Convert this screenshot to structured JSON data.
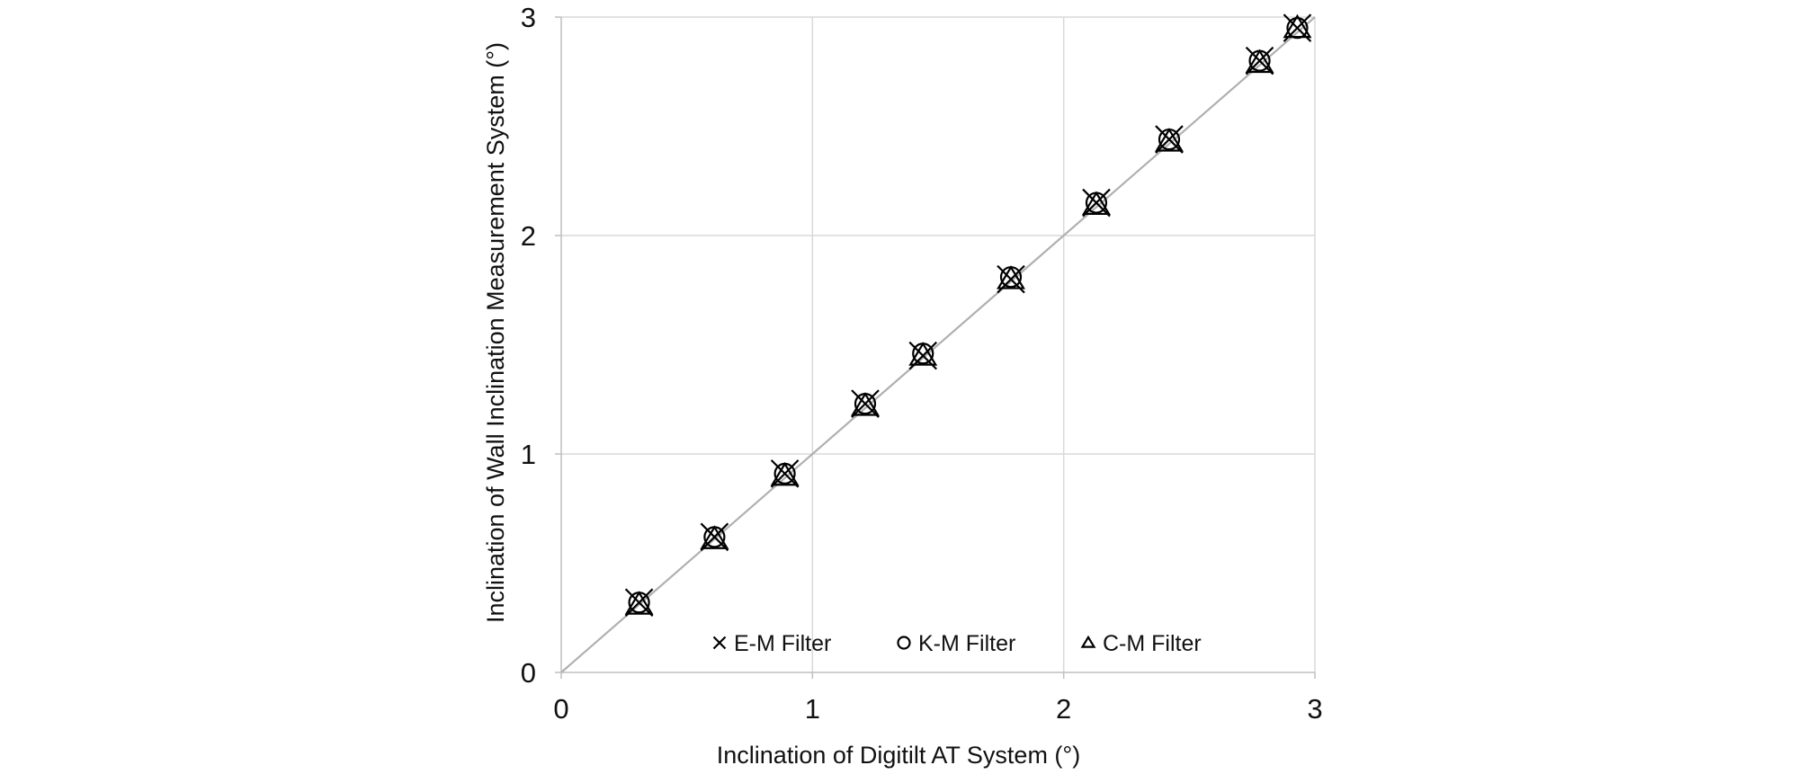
{
  "chart_data": {
    "type": "scatter",
    "xlabel": "Inclination of Digitilt AT System (°)",
    "ylabel": "Inclination of Wall Inclination Measurement System (°)",
    "xlim": [
      0,
      3
    ],
    "ylim": [
      0,
      3
    ],
    "xticks": [
      "0",
      "1",
      "2",
      "3"
    ],
    "yticks": [
      "0",
      "1",
      "2",
      "3"
    ],
    "grid": true,
    "legend_position": "bottom-inside",
    "reference_line": {
      "x": [
        0,
        3
      ],
      "y": [
        0,
        3
      ],
      "color": "#b0b0b0"
    },
    "series": [
      {
        "name": "E-M Filter",
        "marker": "x",
        "x": [
          0.31,
          0.61,
          0.89,
          1.21,
          1.44,
          1.79,
          2.13,
          2.42,
          2.78,
          2.93
        ],
        "y": [
          0.32,
          0.62,
          0.91,
          1.23,
          1.45,
          1.8,
          2.15,
          2.44,
          2.8,
          2.95
        ]
      },
      {
        "name": "K-M Filter",
        "marker": "circle",
        "x": [
          0.31,
          0.61,
          0.89,
          1.21,
          1.44,
          1.79,
          2.13,
          2.42,
          2.78,
          2.93
        ],
        "y": [
          0.32,
          0.62,
          0.91,
          1.23,
          1.46,
          1.81,
          2.15,
          2.44,
          2.8,
          2.95
        ]
      },
      {
        "name": "C-M Filter",
        "marker": "triangle",
        "x": [
          0.31,
          0.61,
          0.89,
          1.21,
          1.44,
          1.79,
          2.13,
          2.42,
          2.78,
          2.93
        ],
        "y": [
          0.31,
          0.61,
          0.9,
          1.22,
          1.45,
          1.8,
          2.14,
          2.43,
          2.79,
          2.95
        ]
      }
    ]
  }
}
